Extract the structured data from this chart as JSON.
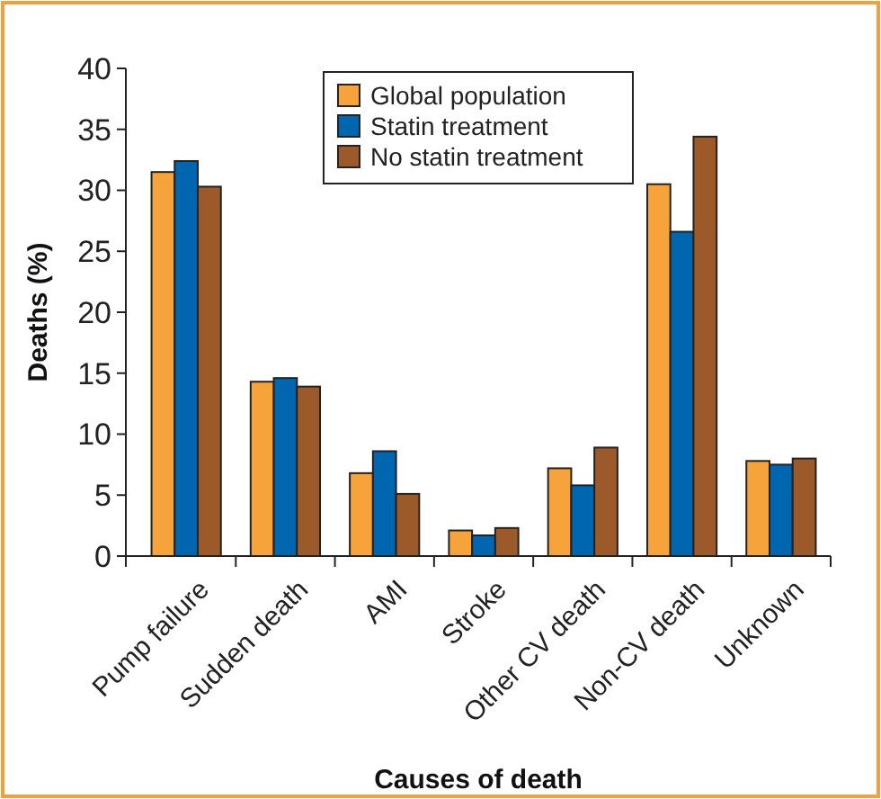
{
  "chart_data": {
    "type": "bar",
    "xlabel": "Causes of death",
    "ylabel": "Deaths (%)",
    "categories": [
      "Pump failure",
      "Sudden death",
      "AMI",
      "Stroke",
      "Other CV death",
      "Non-CV death",
      "Unknown"
    ],
    "series": [
      {
        "name": "Global population",
        "color": "#f7a33c",
        "values": [
          31.5,
          14.3,
          6.8,
          2.1,
          7.2,
          30.5,
          7.8
        ]
      },
      {
        "name": "Statin treatment",
        "color": "#0066b0",
        "values": [
          32.4,
          14.6,
          8.6,
          1.7,
          5.8,
          26.6,
          7.5
        ]
      },
      {
        "name": "No statin treatment",
        "color": "#9c5a2a",
        "values": [
          30.3,
          13.9,
          5.1,
          2.3,
          8.9,
          34.4,
          8.0
        ]
      }
    ],
    "ylim": [
      0,
      40
    ],
    "yticks": [
      0,
      5,
      10,
      15,
      20,
      25,
      30,
      35,
      40
    ],
    "grid": false,
    "legend": "top right"
  }
}
